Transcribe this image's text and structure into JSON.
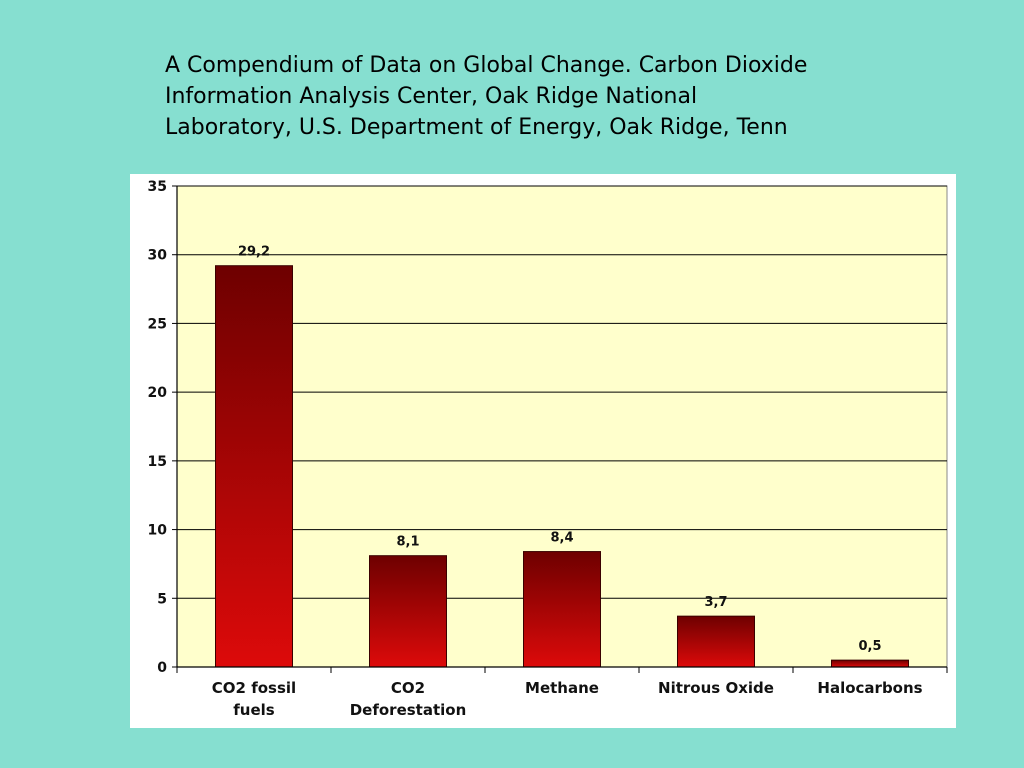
{
  "slide": {
    "title_lines": [
      "A Compendium of Data on Global Change. Carbon Dioxide",
      "Information Analysis Center, Oak Ridge National",
      "Laboratory, U.S. Department of Energy, Oak Ridge, Tenn"
    ],
    "background_color": "#86dfd0"
  },
  "chart_data": {
    "type": "bar",
    "categories": [
      [
        "CO2 fossil",
        "fuels"
      ],
      [
        "CO2",
        "Deforestation"
      ],
      [
        "Methane"
      ],
      [
        "Nitrous Oxide"
      ],
      [
        "Halocarbons"
      ]
    ],
    "values": [
      29.2,
      8.1,
      8.4,
      3.7,
      0.5
    ],
    "data_labels": [
      "29,2",
      "8,1",
      "8,4",
      "3,7",
      "0,5"
    ],
    "ylim": [
      0,
      35
    ],
    "yticks": [
      0,
      5,
      10,
      15,
      20,
      25,
      30,
      35
    ],
    "grid": true,
    "plot_background": "#ffffcc",
    "bar_color_top": "#6e0000",
    "bar_color_bottom": "#dd0a0a",
    "gridline_color": "#000000"
  }
}
